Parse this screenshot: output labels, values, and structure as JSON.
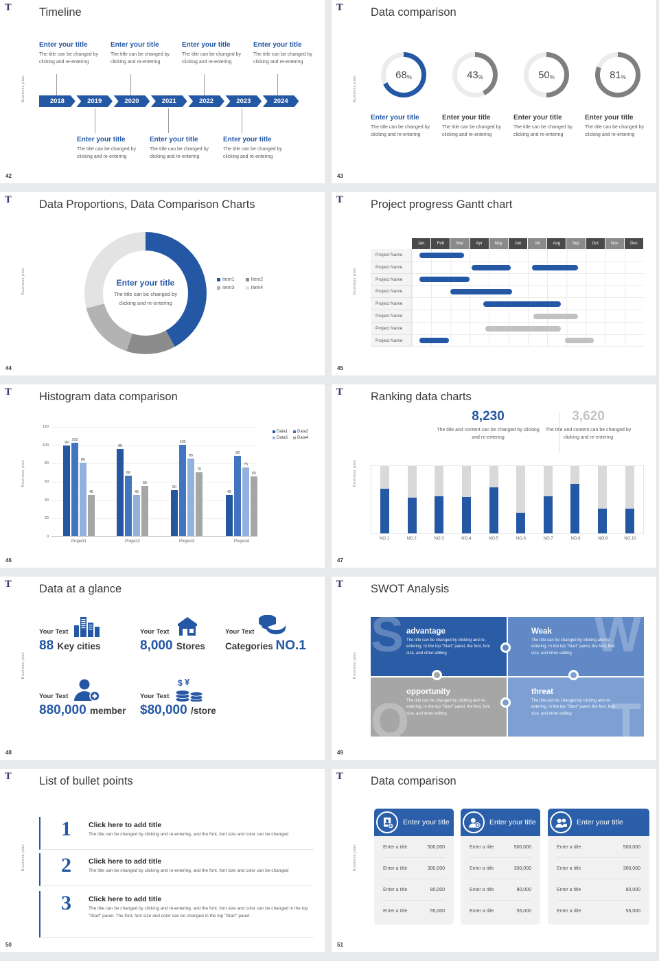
{
  "meta": {
    "logo_glyph": "T",
    "side_label": "Business plan"
  },
  "colors": {
    "primary": "#2457A4",
    "arc_gray": "#7F7F7F",
    "arc_track": "#ECECEC",
    "donut": [
      "#2457A4",
      "#8C8C8C",
      "#B3B3B3",
      "#E3E3E3"
    ],
    "bar_series": [
      "#24579F",
      "#4175C0",
      "#93B1DD",
      "#A6A6A6"
    ],
    "gantt_blue": "#2457A4",
    "gantt_gray": "#C2C2C2",
    "rank_fill": "#2457A4",
    "rank_track": "#D9D9D9",
    "stat_gray": "#C3C3C3",
    "card_blue": "#2B5FA9",
    "swot": {
      "S": "#2B5CA6",
      "W": "#6189C6",
      "O": "#A6A6A6",
      "T": "#7D9FD2"
    }
  },
  "slides": [
    {
      "id": "timeline",
      "page": "42",
      "title": "Timeline",
      "years": [
        "2018",
        "2019",
        "2020",
        "2021",
        "2022",
        "2023",
        "2024"
      ],
      "entry": {
        "title": "Enter your title",
        "body": "The title can be changed by clicking and re-entering"
      },
      "top_entries": 4,
      "bottom_entries": 3
    },
    {
      "id": "rings",
      "page": "43",
      "title": "Data comparison",
      "items": [
        {
          "value": 68,
          "accent": true,
          "label": "Enter your title",
          "body": "The title can be changed by clicking and re-entering"
        },
        {
          "value": 43,
          "accent": false,
          "label": "Enter your title",
          "body": "The title can be changed by clicking and re-entering"
        },
        {
          "value": 50,
          "accent": false,
          "label": "Enter your title",
          "body": "The title can be changed by clicking and re-entering"
        },
        {
          "value": 81,
          "accent": false,
          "label": "Enter your title",
          "body": "The title can be changed by clicking and re-entering"
        }
      ],
      "chart_data": {
        "type": "pie",
        "style": "progress-rings",
        "values": [
          68,
          43,
          50,
          81
        ],
        "unit": "%"
      }
    },
    {
      "id": "pie",
      "page": "44",
      "title": "Data Proportions, Data Comparison Charts",
      "center_title": "Enter your title",
      "center_body": "The title can be changed by clicking and re-entering",
      "chart_data": {
        "type": "pie",
        "legend": [
          "Item1",
          "Item2",
          "Item3",
          "Item4"
        ],
        "values": [
          42,
          13,
          16,
          29
        ],
        "legend_position": "right"
      }
    },
    {
      "id": "gantt",
      "page": "45",
      "title": "Project progress Gantt chart",
      "row_label": "Project Name",
      "months": [
        {
          "label": "Jan",
          "shade": "d"
        },
        {
          "label": "Feb",
          "shade": "d"
        },
        {
          "label": "Mar",
          "shade": "l"
        },
        {
          "label": "Apr",
          "shade": "d"
        },
        {
          "label": "May",
          "shade": "l"
        },
        {
          "label": "Jun",
          "shade": "d"
        },
        {
          "label": "Jul",
          "shade": "l"
        },
        {
          "label": "Aug",
          "shade": "d"
        },
        {
          "label": "Sep",
          "shade": "l"
        },
        {
          "label": "Oct",
          "shade": "d"
        },
        {
          "label": "Nov",
          "shade": "l"
        },
        {
          "label": "Dec",
          "shade": "d"
        }
      ],
      "chart_data": {
        "type": "gantt",
        "x_unit": "months",
        "x_range": [
          0,
          12
        ],
        "rows": [
          {
            "bars": [
              {
                "start": 0.4,
                "end": 2.7,
                "color": "blue"
              }
            ]
          },
          {
            "bars": [
              {
                "start": 3.1,
                "end": 5.1,
                "color": "blue"
              },
              {
                "start": 6.2,
                "end": 8.6,
                "color": "blue"
              }
            ]
          },
          {
            "bars": [
              {
                "start": 0.4,
                "end": 3.0,
                "color": "blue"
              }
            ]
          },
          {
            "bars": [
              {
                "start": 2.0,
                "end": 5.2,
                "color": "blue"
              }
            ]
          },
          {
            "bars": [
              {
                "start": 3.7,
                "end": 7.7,
                "color": "blue"
              }
            ]
          },
          {
            "bars": [
              {
                "start": 6.3,
                "end": 8.6,
                "color": "gray"
              }
            ]
          },
          {
            "bars": [
              {
                "start": 3.8,
                "end": 7.7,
                "color": "gray"
              }
            ]
          },
          {
            "bars": [
              {
                "start": 0.4,
                "end": 1.9,
                "color": "blue"
              },
              {
                "start": 7.9,
                "end": 9.4,
                "color": "gray"
              }
            ]
          }
        ]
      }
    },
    {
      "id": "bars",
      "page": "46",
      "title": "Histogram data comparison",
      "chart_data": {
        "type": "bar",
        "categories": [
          "Project1",
          "Project2",
          "Project3",
          "Project4"
        ],
        "series": [
          {
            "name": "Data1",
            "values": [
              99,
              95,
              50,
              45
            ]
          },
          {
            "name": "Data2",
            "values": [
              102,
              66,
              100,
              88
            ]
          },
          {
            "name": "Data3",
            "values": [
              80,
              45,
              85,
              75
            ]
          },
          {
            "name": "Data4",
            "values": [
              45,
              55,
              70,
              65
            ]
          }
        ],
        "ylim": [
          0,
          120
        ],
        "ytick_step": 20,
        "grid": true,
        "legend_position": "right"
      }
    },
    {
      "id": "ranking",
      "page": "47",
      "title": "Ranking data charts",
      "stats": [
        {
          "value": "8,230",
          "accent": true,
          "caption": "The title and content can be changed by clicking and re-entering"
        },
        {
          "value": "3,620",
          "accent": false,
          "caption": "The title and content can be changed by clicking and re-entering"
        }
      ],
      "chart_data": {
        "type": "bar",
        "style": "filled-track",
        "categories": [
          "NO.1",
          "NO.2",
          "NO.3",
          "NO.4",
          "NO.5",
          "NO.6",
          "NO.7",
          "NO.8",
          "NO.9",
          "NO.10"
        ],
        "values": [
          66,
          53,
          55,
          54,
          68,
          31,
          55,
          73,
          37,
          37
        ],
        "max": 100
      }
    },
    {
      "id": "glance",
      "page": "48",
      "title": "Data at a glance",
      "items": [
        {
          "label": "Your Text",
          "icon": "city-buildings-icon",
          "parts": [
            {
              "text": "88 ",
              "big": true
            },
            {
              "text": "Key cities",
              "big": false
            }
          ]
        },
        {
          "label": "Your Text",
          "icon": "store-icon",
          "parts": [
            {
              "text": "8,000 ",
              "big": true
            },
            {
              "text": "Stores",
              "big": false
            }
          ]
        },
        {
          "label": "Your Text",
          "icon": "pie-chart-icon",
          "parts": [
            {
              "text": "Categories ",
              "big": false
            },
            {
              "text": "NO.1",
              "big": true
            }
          ]
        },
        {
          "label": "Your Text",
          "icon": "add-member-icon",
          "parts": [
            {
              "text": "880,000 ",
              "big": true
            },
            {
              "text": "member",
              "big": false
            }
          ]
        },
        {
          "label": "Your Text",
          "icon": "coins-currency-icon",
          "parts": [
            {
              "text": "$80,000 ",
              "big": true
            },
            {
              "text": "/store",
              "big": false
            }
          ]
        }
      ]
    },
    {
      "id": "swot",
      "page": "49",
      "title": "SWOT Analysis",
      "quads": [
        {
          "letter": "S",
          "title": "advantage",
          "body": "The title can be changed by clicking and re-entering. In the top \"Start\" panel, the font, font size, and other editing"
        },
        {
          "letter": "W",
          "title": "Weak",
          "body": "The title can be changed by clicking and re-entering. In the top \"Start\" panel, the font, font size, and other editing"
        },
        {
          "letter": "O",
          "title": "opportunity",
          "body": "The title can be changed by clicking and re-entering. In the top \"Start\" panel, the font, font size, and other editing"
        },
        {
          "letter": "T",
          "title": "threat",
          "body": "The title can be changed by clicking and re-entering. In the top \"Start\" panel, the font, font size, and other editing"
        }
      ]
    },
    {
      "id": "bullets",
      "page": "50",
      "title": "List of bullet points",
      "items": [
        {
          "num": "1",
          "title": "Click here to add title",
          "body": "The title can be changed by clicking and re-entering, and the font, font size and color can be changed"
        },
        {
          "num": "2",
          "title": "Click here to add title",
          "body": "The title can be changed by clicking and re-entering, and the font, font size and color can be changed"
        },
        {
          "num": "3",
          "title": "Click here to add title",
          "body": "The title can be changed by clicking and re-entering, and the font, font size and color can be changed in the top \"Start\" panel. The font, font size and color can be changed in the top \"Start\" panel."
        }
      ]
    },
    {
      "id": "cards",
      "page": "51",
      "title": "Data comparison",
      "cards": [
        {
          "icon": "id-card-plus-icon",
          "title": "Enter your title",
          "rows": [
            {
              "label": "Enter a title",
              "value": "500,000"
            },
            {
              "label": "Enter a title",
              "value": "300,000"
            },
            {
              "label": "Enter a title",
              "value": "80,000"
            },
            {
              "label": "Enter a title",
              "value": "55,000"
            }
          ]
        },
        {
          "icon": "person-plus-icon",
          "title": "Enter your title",
          "rows": [
            {
              "label": "Enter a title",
              "value": "500,000"
            },
            {
              "label": "Enter a title",
              "value": "300,000"
            },
            {
              "label": "Enter a title",
              "value": "80,000"
            },
            {
              "label": "Enter a title",
              "value": "55,000"
            }
          ]
        },
        {
          "icon": "people-icon",
          "title": "Enter your title",
          "rows": [
            {
              "label": "Enter a title",
              "value": "500,000"
            },
            {
              "label": "Enter a title",
              "value": "300,000"
            },
            {
              "label": "Enter a title",
              "value": "80,000"
            },
            {
              "label": "Enter a title",
              "value": "55,000"
            }
          ]
        }
      ]
    }
  ]
}
